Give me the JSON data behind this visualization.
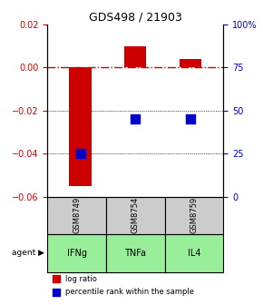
{
  "title": "GDS498 / 21903",
  "samples": [
    "GSM8749",
    "GSM8754",
    "GSM8759"
  ],
  "agents": [
    "IFNg",
    "TNFa",
    "IL4"
  ],
  "log_ratios": [
    -0.055,
    0.01,
    0.004
  ],
  "percentile_ranks": [
    25,
    45,
    45
  ],
  "ylim_left": [
    -0.06,
    0.02
  ],
  "ylim_right": [
    0,
    100
  ],
  "left_ticks": [
    -0.06,
    -0.04,
    -0.02,
    0.0,
    0.02
  ],
  "right_ticks": [
    0,
    25,
    50,
    75,
    100
  ],
  "right_tick_labels": [
    "0",
    "25",
    "50",
    "75",
    "100%"
  ],
  "bar_color": "#cc0000",
  "square_color": "#0000cc",
  "agent_bg": "#99ee99",
  "sample_bg": "#cccccc",
  "zero_line_color": "#cc0000",
  "grid_color": "#000000",
  "bar_width": 0.4,
  "square_size": 60,
  "legend_bar_label": "log ratio",
  "legend_sq_label": "percentile rank within the sample"
}
